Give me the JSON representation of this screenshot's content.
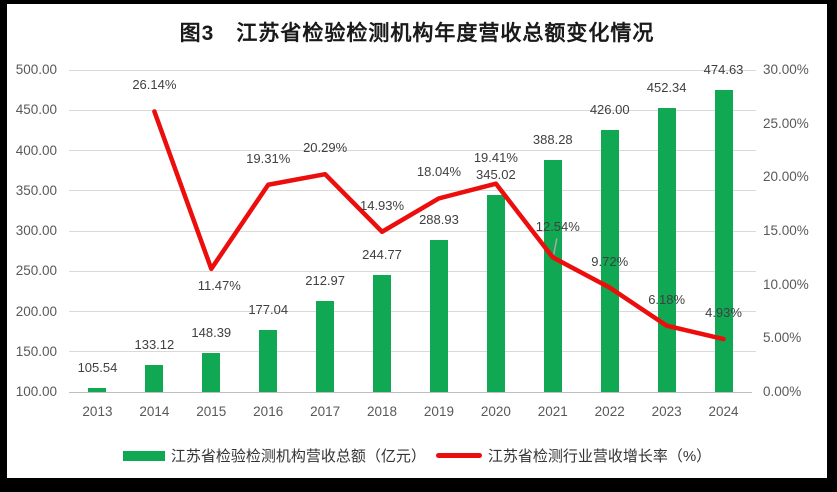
{
  "title": "图3　江苏省检验检测机构年度营收总额变化情况",
  "colors": {
    "bar": "#10a853",
    "line": "#ec0d0d",
    "gridline": "#d9d9d9",
    "axis_line": "#bfbfbf",
    "tick_text": "#595959",
    "data_label_text": "#404040",
    "leader_line": "#a8a8a8",
    "background": "#ffffff",
    "frame": "#000000"
  },
  "chart_data": {
    "type": "bar",
    "subtype": "combo-bar-line-dual-axis",
    "title": "图3　江苏省检验检测机构年度营收总额变化情况",
    "categories": [
      "2013",
      "2014",
      "2015",
      "2016",
      "2017",
      "2018",
      "2019",
      "2020",
      "2021",
      "2022",
      "2023",
      "2024"
    ],
    "series": [
      {
        "name": "江苏省检验检测机构营收总额（亿元）",
        "type": "bar",
        "axis": "left",
        "color": "#10a853",
        "values": [
          105.54,
          133.12,
          148.39,
          177.04,
          212.97,
          244.77,
          288.93,
          345.02,
          388.28,
          426.0,
          452.34,
          474.63
        ],
        "data_labels": [
          "105.54",
          "133.12",
          "148.39",
          "177.04",
          "212.97",
          "244.77",
          "288.93",
          "345.02",
          "388.28",
          "426.00",
          "452.34",
          "474.63"
        ]
      },
      {
        "name": "江苏省检测行业营收增长率（%）",
        "type": "line",
        "axis": "right",
        "color": "#ec0d0d",
        "start_category_index": 1,
        "values": [
          26.14,
          11.47,
          19.31,
          20.29,
          14.93,
          18.04,
          19.41,
          12.54,
          9.72,
          6.18,
          4.93
        ],
        "data_labels": [
          "26.14%",
          "11.47%",
          "19.31%",
          "20.29%",
          "14.93%",
          "18.04%",
          "19.41%",
          "12.54%",
          "9.72%",
          "6.18%",
          "4.93%"
        ],
        "label_placements": [
          {
            "pos": "above"
          },
          {
            "pos": "below",
            "dx": 8
          },
          {
            "pos": "above"
          },
          {
            "pos": "above"
          },
          {
            "pos": "above"
          },
          {
            "pos": "above"
          },
          {
            "pos": "above"
          },
          {
            "pos": "above",
            "dx": 5,
            "dy": -37,
            "leader": true
          },
          {
            "pos": "above"
          },
          {
            "pos": "above"
          },
          {
            "pos": "above"
          }
        ]
      }
    ],
    "left_axis": {
      "min": 100,
      "max": 500,
      "step": 50,
      "tick_labels": [
        "500.00",
        "450.00",
        "400.00",
        "350.00",
        "300.00",
        "250.00",
        "200.00",
        "150.00",
        "100.00"
      ]
    },
    "right_axis": {
      "min": 0,
      "max": 30,
      "step": 5,
      "tick_labels": [
        "30.00%",
        "25.00%",
        "20.00%",
        "15.00%",
        "10.00%",
        "5.00%",
        "0.00%"
      ]
    },
    "grid": "horizontal-on-left-axis",
    "legend_position": "bottom"
  },
  "legend": {
    "items": [
      {
        "label": "江苏省检验检测机构营收总额（亿元）",
        "color": "#10a853",
        "shape": "rect"
      },
      {
        "label": "江苏省检测行业营收增长率（%）",
        "color": "#ec0d0d",
        "shape": "line"
      }
    ]
  }
}
